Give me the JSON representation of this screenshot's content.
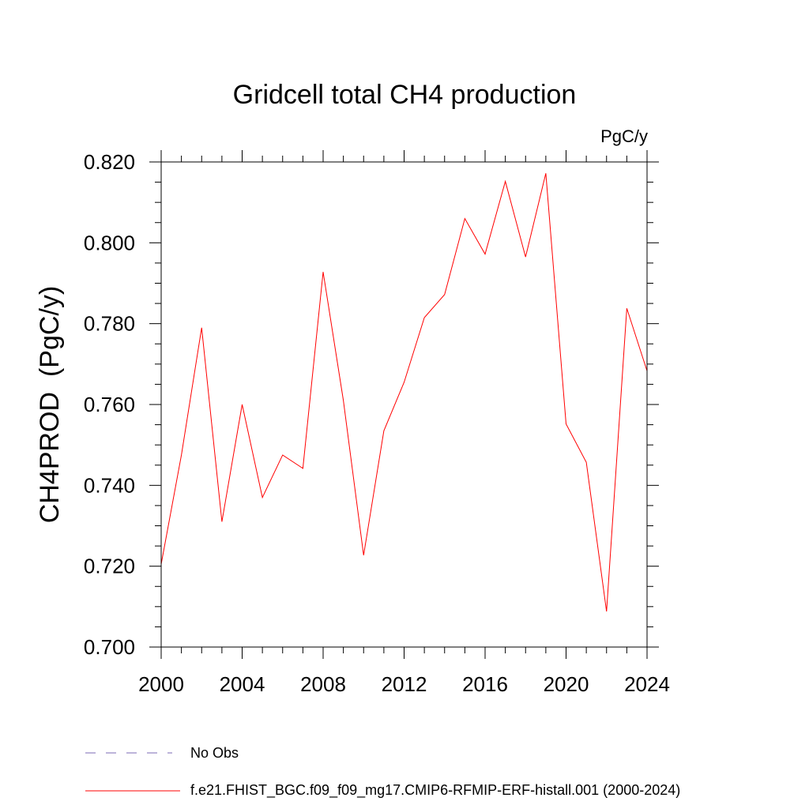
{
  "chart_data": {
    "type": "line",
    "title": "Gridcell total CH4 production",
    "units_label": "PgC/y",
    "xlabel": "",
    "ylabel": "CH4PROD  (PgC/y)",
    "xlim": [
      2000,
      2024
    ],
    "ylim": [
      0.7,
      0.82
    ],
    "x_ticks": [
      "2000",
      "2004",
      "2008",
      "2012",
      "2016",
      "2020",
      "2024"
    ],
    "y_ticks": [
      "0.700",
      "0.720",
      "0.740",
      "0.760",
      "0.780",
      "0.800",
      "0.820"
    ],
    "x": [
      2000,
      2001,
      2002,
      2003,
      2004,
      2005,
      2006,
      2007,
      2008,
      2009,
      2010,
      2011,
      2012,
      2013,
      2014,
      2015,
      2016,
      2017,
      2018,
      2019,
      2020,
      2021,
      2022,
      2023,
      2024
    ],
    "series": [
      {
        "name": "f.e21.FHIST_BGC.f09_f09_mg17.CMIP6-RFMIP-ERF-histall.001 (2000-2024)",
        "color": "#ff0000",
        "values": [
          0.7205,
          0.7475,
          0.779,
          0.731,
          0.76,
          0.737,
          0.7475,
          0.7442,
          0.7928,
          0.761,
          0.7227,
          0.7535,
          0.7655,
          0.7815,
          0.7872,
          0.806,
          0.7972,
          0.8152,
          0.7965,
          0.8172,
          0.7552,
          0.7457,
          0.7088,
          0.7838,
          0.7683
        ]
      }
    ],
    "legend": [
      {
        "label": "No Obs",
        "color": "#7b68b5",
        "style": "dashed"
      },
      {
        "label": "f.e21.FHIST_BGC.f09_f09_mg17.CMIP6-RFMIP-ERF-histall.001 (2000-2024)",
        "color": "#ff0000",
        "style": "solid"
      }
    ],
    "legend_placement": "bottom-left"
  }
}
